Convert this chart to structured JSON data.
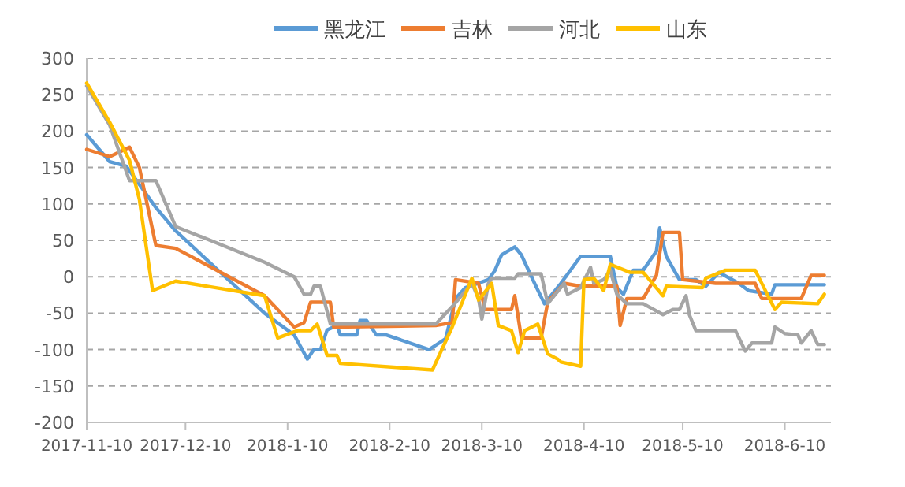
{
  "chart_data": {
    "type": "line",
    "xlim": [
      "2017-11-10",
      "2018-06-24"
    ],
    "ylim": [
      -200,
      300
    ],
    "xticks": [
      {
        "value": "2017-11-10",
        "label": "2017-11-10"
      },
      {
        "value": "2017-12-10",
        "label": "2017-12-10"
      },
      {
        "value": "2018-01-10",
        "label": "2018-1-10"
      },
      {
        "value": "2018-02-10",
        "label": "2018-2-10"
      },
      {
        "value": "2018-03-10",
        "label": "2018-3-10"
      },
      {
        "value": "2018-04-10",
        "label": "2018-4-10"
      },
      {
        "value": "2018-05-10",
        "label": "2018-5-10"
      },
      {
        "value": "2018-06-10",
        "label": "2018-6-10"
      }
    ],
    "yticks": [
      -200,
      -150,
      -100,
      -50,
      0,
      50,
      100,
      150,
      200,
      250,
      300
    ],
    "grid": "y",
    "legend": "top",
    "series": [
      {
        "name": "黑龙江",
        "color": "#5b9bd5",
        "x": [
          "2017-11-10",
          "2017-11-17",
          "2017-11-22",
          "2017-12-01",
          "2017-12-07",
          "2018-01-03",
          "2018-01-12",
          "2018-01-16",
          "2018-01-18",
          "2018-01-20",
          "2018-01-22",
          "2018-01-25",
          "2018-01-26",
          "2018-01-31",
          "2018-02-01",
          "2018-02-03",
          "2018-02-06",
          "2018-02-09",
          "2018-02-22",
          "2018-02-27",
          "2018-03-02",
          "2018-03-05",
          "2018-03-12",
          "2018-03-14",
          "2018-03-16",
          "2018-03-20",
          "2018-03-22",
          "2018-03-26",
          "2018-03-29",
          "2018-04-03",
          "2018-04-09",
          "2018-04-18",
          "2018-04-20",
          "2018-04-22",
          "2018-04-25",
          "2018-04-28",
          "2018-05-02",
          "2018-05-03",
          "2018-05-05",
          "2018-05-09",
          "2018-05-14",
          "2018-05-17",
          "2018-05-21",
          "2018-05-27",
          "2018-05-30",
          "2018-06-06",
          "2018-06-07",
          "2018-06-22"
        ],
        "values": [
          195,
          158,
          152,
          95,
          63,
          -50,
          -80,
          -113,
          -100,
          -100,
          -73,
          -67,
          -80,
          -80,
          -60,
          -60,
          -80,
          -80,
          -100,
          -85,
          -30,
          -15,
          -4,
          9,
          30,
          41,
          30,
          -9,
          -37,
          -9,
          28,
          28,
          -15,
          -24,
          9,
          9,
          35,
          67,
          28,
          -4,
          -4,
          -13,
          6,
          -9,
          -19,
          -24,
          -11,
          -11
        ]
      },
      {
        "name": "吉林",
        "color": "#ed7d31",
        "x": [
          "2017-11-10",
          "2017-11-17",
          "2017-11-23",
          "2017-11-26",
          "2017-12-01",
          "2017-12-07",
          "2018-01-03",
          "2018-01-12",
          "2018-01-15",
          "2018-01-17",
          "2018-01-23",
          "2018-01-24",
          "2018-02-24",
          "2018-03-01",
          "2018-03-02",
          "2018-03-09",
          "2018-03-11",
          "2018-03-19",
          "2018-03-20",
          "2018-03-22",
          "2018-03-28",
          "2018-03-30",
          "2018-04-04",
          "2018-04-09",
          "2018-04-20",
          "2018-04-21",
          "2018-04-23",
          "2018-04-28",
          "2018-05-02",
          "2018-05-04",
          "2018-05-09",
          "2018-05-10",
          "2018-05-20",
          "2018-06-01",
          "2018-06-03",
          "2018-06-15",
          "2018-06-18",
          "2018-06-22"
        ],
        "values": [
          175,
          165,
          178,
          150,
          43,
          39,
          -26,
          -69,
          -63,
          -35,
          -35,
          -69,
          -67,
          -63,
          -4,
          -9,
          -45,
          -45,
          -26,
          -84,
          -84,
          -35,
          -9,
          -13,
          -13,
          -67,
          -30,
          -30,
          2,
          61,
          61,
          -4,
          -9,
          -9,
          -30,
          -30,
          2,
          2
        ]
      },
      {
        "name": "河北",
        "color": "#a5a5a5",
        "x": [
          "2017-11-10",
          "2017-11-17",
          "2017-11-23",
          "2017-12-01",
          "2017-12-07",
          "2018-01-03",
          "2018-01-12",
          "2018-01-15",
          "2018-01-17",
          "2018-01-18",
          "2018-01-20",
          "2018-01-23",
          "2018-02-24",
          "2018-03-01",
          "2018-03-07",
          "2018-03-09",
          "2018-03-10",
          "2018-03-12",
          "2018-03-13",
          "2018-03-20",
          "2018-03-21",
          "2018-03-28",
          "2018-03-30",
          "2018-04-04",
          "2018-04-05",
          "2018-04-09",
          "2018-04-12",
          "2018-04-13",
          "2018-04-16",
          "2018-04-18",
          "2018-04-20",
          "2018-04-23",
          "2018-04-28",
          "2018-05-04",
          "2018-05-07",
          "2018-05-09",
          "2018-05-11",
          "2018-05-12",
          "2018-05-14",
          "2018-05-26",
          "2018-05-29",
          "2018-05-31",
          "2018-06-06",
          "2018-06-07",
          "2018-06-10",
          "2018-06-14",
          "2018-06-15",
          "2018-06-18",
          "2018-06-20",
          "2018-06-22"
        ],
        "values": [
          262,
          208,
          132,
          132,
          69,
          20,
          0,
          -24,
          -24,
          -13,
          -13,
          -65,
          -65,
          -41,
          -9,
          -30,
          -58,
          -9,
          -2,
          -2,
          4,
          4,
          -37,
          -9,
          -24,
          -15,
          13,
          -9,
          -4,
          9,
          -24,
          -37,
          -37,
          -52,
          -45,
          -45,
          -26,
          -52,
          -74,
          -74,
          -102,
          -91,
          -91,
          -69,
          -78,
          -80,
          -91,
          -74,
          -93,
          -93
        ]
      },
      {
        "name": "山东",
        "color": "#ffc000",
        "x": [
          "2017-11-10",
          "2017-11-17",
          "2017-11-23",
          "2017-11-26",
          "2017-11-30",
          "2017-12-07",
          "2018-01-03",
          "2018-01-07",
          "2018-01-13",
          "2018-01-17",
          "2018-01-19",
          "2018-01-22",
          "2018-01-25",
          "2018-01-26",
          "2018-02-23",
          "2018-03-01",
          "2018-03-07",
          "2018-03-09",
          "2018-03-13",
          "2018-03-15",
          "2018-03-19",
          "2018-03-21",
          "2018-03-23",
          "2018-03-27",
          "2018-03-30",
          "2018-04-02",
          "2018-04-03",
          "2018-04-09",
          "2018-04-10",
          "2018-04-13",
          "2018-04-16",
          "2018-04-18",
          "2018-04-24",
          "2018-04-28",
          "2018-05-04",
          "2018-05-05",
          "2018-05-16",
          "2018-05-17",
          "2018-05-23",
          "2018-06-01",
          "2018-06-07",
          "2018-06-09",
          "2018-06-20",
          "2018-06-22"
        ],
        "values": [
          266,
          212,
          160,
          106,
          -19,
          -6,
          -26,
          -84,
          -74,
          -74,
          -65,
          -108,
          -108,
          -119,
          -128,
          -69,
          -2,
          -32,
          -9,
          -67,
          -74,
          -104,
          -74,
          -65,
          -106,
          -113,
          -117,
          -123,
          -4,
          -2,
          -19,
          17,
          6,
          6,
          -26,
          -13,
          -15,
          -2,
          9,
          9,
          -45,
          -35,
          -37,
          -24
        ]
      }
    ]
  }
}
